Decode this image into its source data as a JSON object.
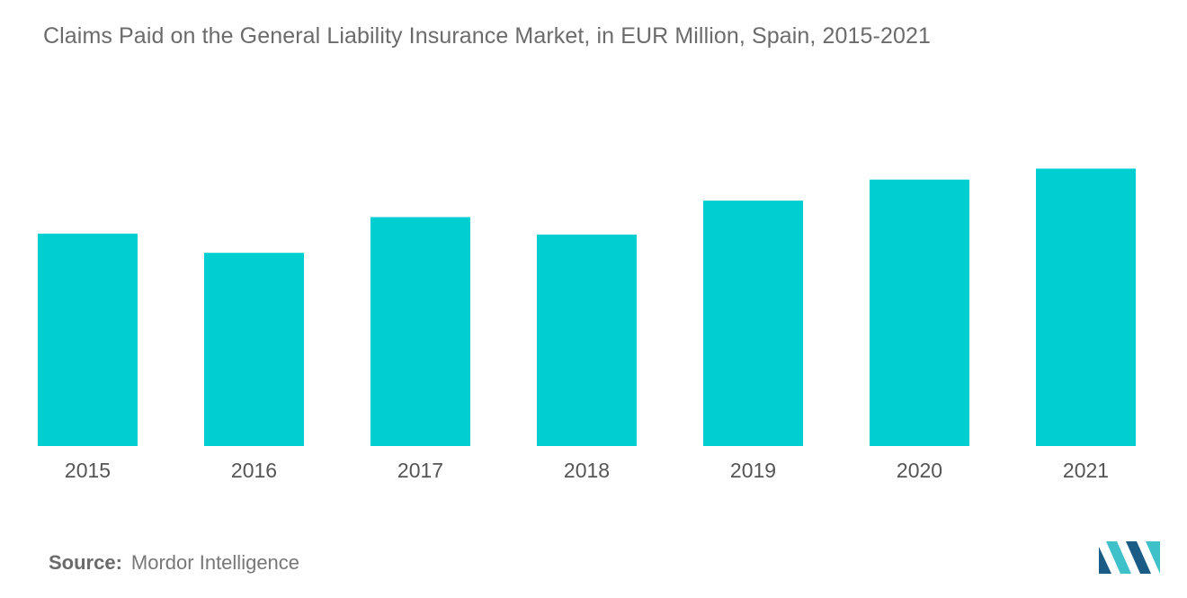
{
  "title": "Claims Paid on the General Liability Insurance Market, in EUR Million, Spain, 2015-2021",
  "source": {
    "label": "Source:",
    "value": "Mordor Intelligence"
  },
  "colors": {
    "bar": "#00CED1",
    "logo_dark": "#1b5c86",
    "logo_light": "#3fc1c9"
  },
  "icons": {
    "logo": "mordor-intelligence-logo-icon"
  },
  "chart_data": {
    "type": "bar",
    "title": "Claims Paid on the General Liability Insurance Market, in EUR Million, Spain, 2015-2021",
    "xlabel": "",
    "ylabel": "",
    "categories": [
      "2015",
      "2016",
      "2017",
      "2018",
      "2019",
      "2020",
      "2021"
    ],
    "values": [
      232,
      211,
      250,
      231,
      268,
      291,
      303
    ],
    "ylim": [
      0,
      330
    ],
    "grid": false,
    "legend": "none"
  }
}
